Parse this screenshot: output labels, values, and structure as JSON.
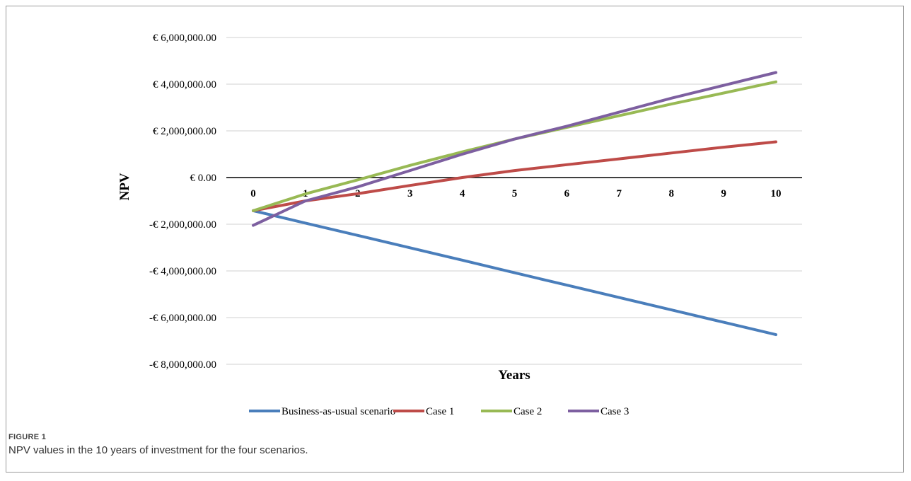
{
  "figure": {
    "label": "FIGURE 1",
    "caption": "NPV values in the 10 years of investment for the four scenarios."
  },
  "colors": {
    "Business-as-usual scenario": "#4a7ebb",
    "Case 1": "#be4b48",
    "Case 2": "#98b954",
    "Case 3": "#7d5fa0",
    "grid": "#d9d9d9",
    "zero_axis": "#000000"
  },
  "chart_data": {
    "type": "line",
    "xlabel": "Years",
    "ylabel": "NPV",
    "x": [
      0,
      1,
      2,
      3,
      4,
      5,
      6,
      7,
      8,
      9,
      10
    ],
    "x_tick_labels": [
      "0",
      "1",
      "2",
      "3",
      "4",
      "5",
      "6",
      "7",
      "8",
      "9",
      "10"
    ],
    "ylim": [
      -8000000,
      6000000
    ],
    "y_ticks": [
      6000000,
      4000000,
      2000000,
      0,
      -2000000,
      -4000000,
      -6000000,
      -8000000
    ],
    "y_tick_labels": [
      "€ 6,000,000.00",
      "€ 4,000,000.00",
      "€ 2,000,000.00",
      "€ 0.00",
      "-€ 2,000,000.00",
      "-€ 4,000,000.00",
      "-€ 6,000,000.00",
      "-€ 8,000,000.00"
    ],
    "grid": true,
    "legend_position": "bottom",
    "series": [
      {
        "name": "Business-as-usual scenario",
        "values": [
          -1420000,
          -1950000,
          -2480000,
          -3010000,
          -3540000,
          -4080000,
          -4610000,
          -5140000,
          -5670000,
          -6200000,
          -6730000
        ]
      },
      {
        "name": "Case 1",
        "values": [
          -1420000,
          -1000000,
          -690000,
          -340000,
          0,
          300000,
          550000,
          800000,
          1050000,
          1300000,
          1530000
        ]
      },
      {
        "name": "Case 2",
        "values": [
          -1420000,
          -700000,
          -100000,
          520000,
          1100000,
          1650000,
          2150000,
          2650000,
          3150000,
          3620000,
          4100000
        ]
      },
      {
        "name": "Case 3",
        "values": [
          -2050000,
          -1000000,
          -400000,
          300000,
          1000000,
          1650000,
          2200000,
          2800000,
          3400000,
          3950000,
          4500000
        ]
      }
    ]
  }
}
